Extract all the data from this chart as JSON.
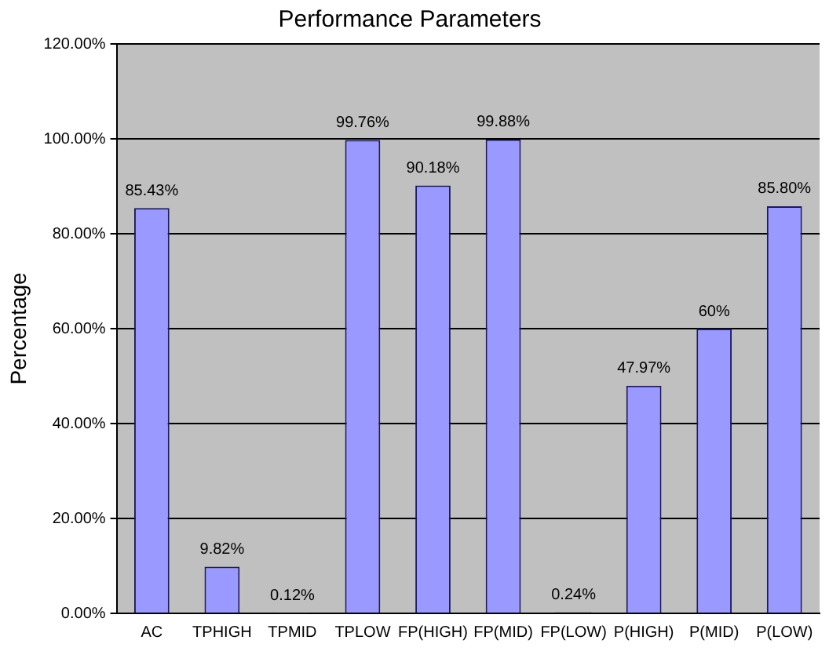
{
  "chart_data": {
    "type": "bar",
    "title": "Performance Parameters",
    "ylabel": "Percentage",
    "categories": [
      "AC",
      "TPHIGH",
      "TPMID",
      "TPLOW",
      "FP(HIGH)",
      "FP(MID)",
      "FP(LOW)",
      "P(HIGH)",
      "P(MID)",
      "P(LOW)"
    ],
    "values": [
      85.43,
      9.82,
      0.12,
      99.76,
      90.18,
      99.88,
      0.24,
      47.97,
      60,
      85.8
    ],
    "value_labels": [
      "85.43%",
      "9.82%",
      "0.12%",
      "99.76%",
      "90.18%",
      "99.88%",
      "0.24%",
      "47.97%",
      "60%",
      "85.80%"
    ],
    "color": "#9999ff",
    "ylim": [
      0,
      120
    ],
    "yticks": [
      {
        "value": 0,
        "label": "0.00%"
      },
      {
        "value": 20,
        "label": "20.00%"
      },
      {
        "value": 40,
        "label": "40.00%"
      },
      {
        "value": 60,
        "label": "60.00%"
      },
      {
        "value": 80,
        "label": "80.00%"
      },
      {
        "value": 100,
        "label": "100.00%"
      },
      {
        "value": 120,
        "label": "120.00%"
      }
    ],
    "grid": "y",
    "legend": false
  }
}
